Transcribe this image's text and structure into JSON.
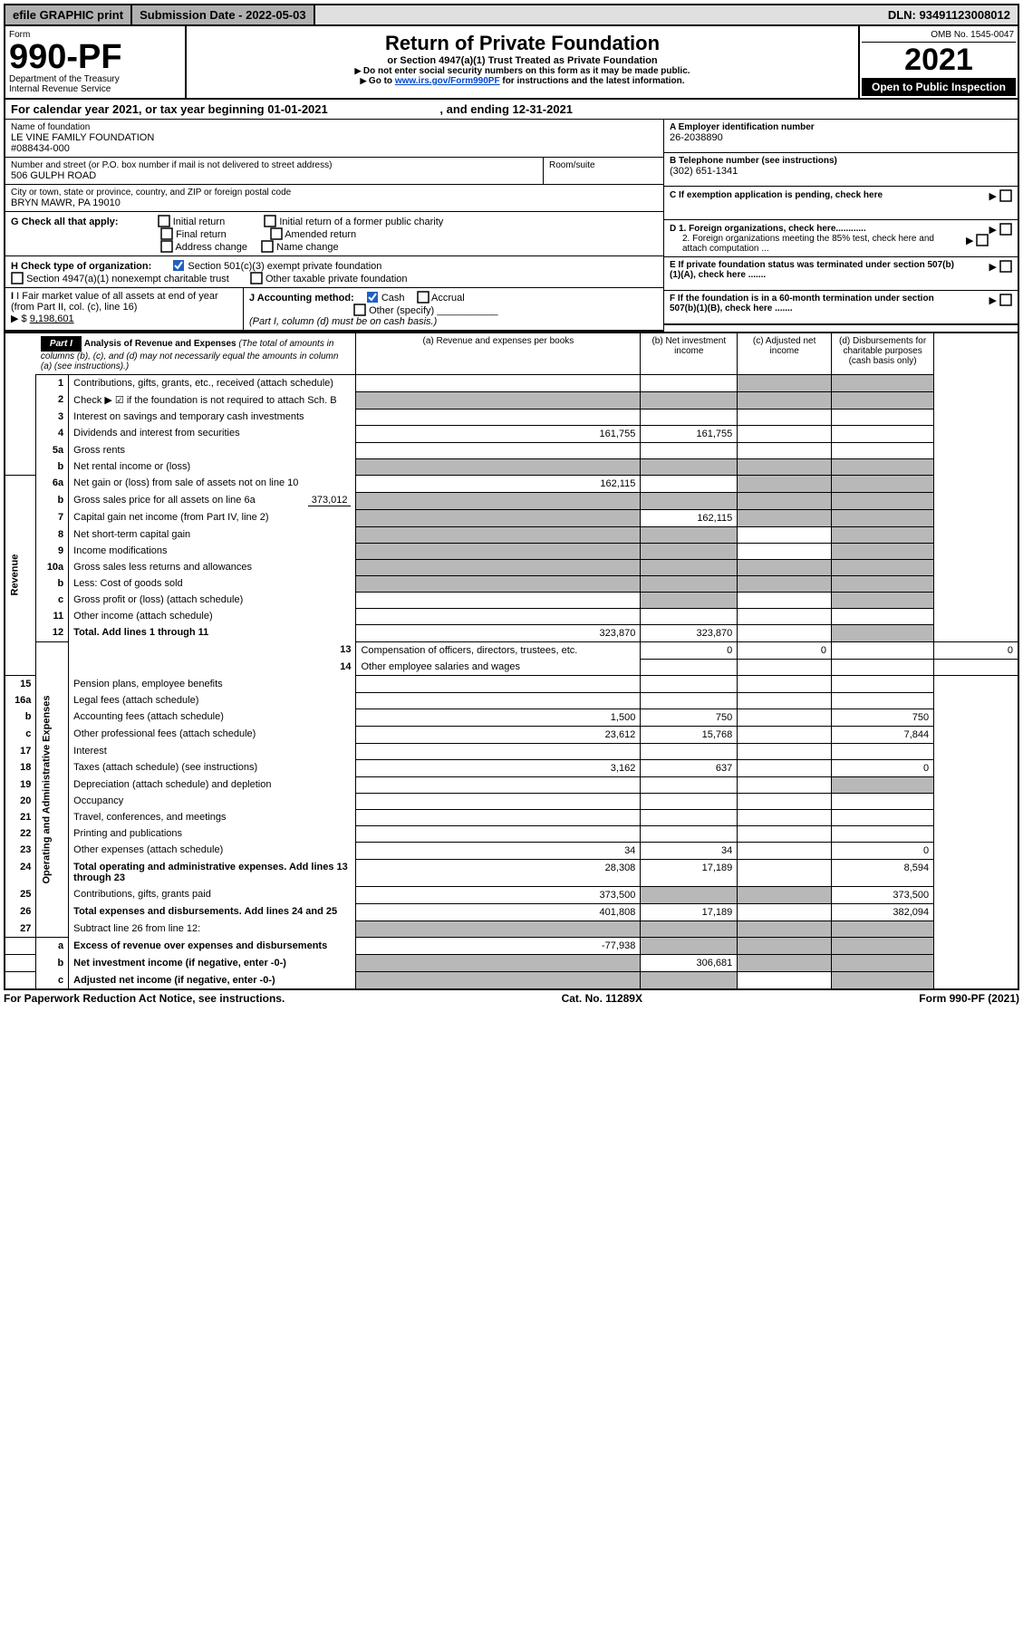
{
  "top_bar": {
    "efile": "efile GRAPHIC print",
    "submission_label": "Submission Date - 2022-05-03",
    "dln": "DLN: 93491123008012"
  },
  "header": {
    "form_label": "Form",
    "form_number": "990-PF",
    "dept": "Department of the Treasury",
    "irs": "Internal Revenue Service",
    "title": "Return of Private Foundation",
    "subtitle": "or Section 4947(a)(1) Trust Treated as Private Foundation",
    "note1": "Do not enter social security numbers on this form as it may be made public.",
    "note2_pre": "Go to ",
    "note2_link": "www.irs.gov/Form990PF",
    "note2_post": " for instructions and the latest information.",
    "omb": "OMB No. 1545-0047",
    "year": "2021",
    "inspection": "Open to Public Inspection"
  },
  "calendar": {
    "text_pre": "For calendar year 2021, or tax year beginning ",
    "begin": "01-01-2021",
    "mid": " , and ending ",
    "end": "12-31-2021"
  },
  "foundation": {
    "name_label": "Name of foundation",
    "name": "LE VINE FAMILY FOUNDATION",
    "name2": "#088434-000",
    "addr_label": "Number and street (or P.O. box number if mail is not delivered to street address)",
    "addr": "506 GULPH ROAD",
    "room_label": "Room/suite",
    "city_label": "City or town, state or province, country, and ZIP or foreign postal code",
    "city": "BRYN MAWR, PA  19010"
  },
  "right_box": {
    "A_label": "A Employer identification number",
    "A_val": "26-2038890",
    "B_label": "B Telephone number (see instructions)",
    "B_val": "(302) 651-1341",
    "C_label": "C If exemption application is pending, check here",
    "D1": "D 1. Foreign organizations, check here............",
    "D2": "2. Foreign organizations meeting the 85% test, check here and attach computation ...",
    "E": "E  If private foundation status was terminated under section 507(b)(1)(A), check here .......",
    "F": "F  If the foundation is in a 60-month termination under section 507(b)(1)(B), check here ......."
  },
  "G": {
    "label": "G Check all that apply:",
    "o1": "Initial return",
    "o2": "Final return",
    "o3": "Address change",
    "o4": "Initial return of a former public charity",
    "o5": "Amended return",
    "o6": "Name change"
  },
  "H": {
    "label": "H Check type of organization:",
    "o1": "Section 501(c)(3) exempt private foundation",
    "o2": "Section 4947(a)(1) nonexempt charitable trust",
    "o3": "Other taxable private foundation"
  },
  "I": {
    "label": "I Fair market value of all assets at end of year (from Part II, col. (c), line 16)",
    "val_label": "$",
    "val": "9,198,601"
  },
  "J": {
    "label": "J Accounting method:",
    "o1": "Cash",
    "o2": "Accrual",
    "o3": "Other (specify)",
    "note": "(Part I, column (d) must be on cash basis.)"
  },
  "part1": {
    "label": "Part I",
    "title": "Analysis of Revenue and Expenses",
    "title_note": " (The total of amounts in columns (b), (c), and (d) may not necessarily equal the amounts in column (a) (see instructions).)",
    "col_a": "(a)  Revenue and expenses per books",
    "col_b": "(b)  Net investment income",
    "col_c": "(c)  Adjusted net income",
    "col_d": "(d)  Disbursements for charitable purposes (cash basis only)"
  },
  "side": {
    "revenue": "Revenue",
    "expenses": "Operating and Administrative Expenses"
  },
  "rows": {
    "r1": {
      "n": "1",
      "d": "Contributions, gifts, grants, etc., received (attach schedule)"
    },
    "r2": {
      "n": "2",
      "d": "Check ▶ ☑ if the foundation is not required to attach Sch. B"
    },
    "r3": {
      "n": "3",
      "d": "Interest on savings and temporary cash investments"
    },
    "r4": {
      "n": "4",
      "d": "Dividends and interest from securities",
      "a": "161,755",
      "b": "161,755"
    },
    "r5a": {
      "n": "5a",
      "d": "Gross rents"
    },
    "r5b": {
      "n": "b",
      "d": "Net rental income or (loss)"
    },
    "r6a": {
      "n": "6a",
      "d": "Net gain or (loss) from sale of assets not on line 10",
      "a": "162,115"
    },
    "r6b": {
      "n": "b",
      "d": "Gross sales price for all assets on line 6a",
      "inline": "373,012"
    },
    "r7": {
      "n": "7",
      "d": "Capital gain net income (from Part IV, line 2)",
      "b": "162,115"
    },
    "r8": {
      "n": "8",
      "d": "Net short-term capital gain"
    },
    "r9": {
      "n": "9",
      "d": "Income modifications"
    },
    "r10a": {
      "n": "10a",
      "d": "Gross sales less returns and allowances"
    },
    "r10b": {
      "n": "b",
      "d": "Less: Cost of goods sold"
    },
    "r10c": {
      "n": "c",
      "d": "Gross profit or (loss) (attach schedule)"
    },
    "r11": {
      "n": "11",
      "d": "Other income (attach schedule)"
    },
    "r12": {
      "n": "12",
      "d": "Total. Add lines 1 through 11",
      "a": "323,870",
      "b": "323,870"
    },
    "r13": {
      "n": "13",
      "d": "Compensation of officers, directors, trustees, etc.",
      "a": "0",
      "b": "0",
      "dd": "0"
    },
    "r14": {
      "n": "14",
      "d": "Other employee salaries and wages"
    },
    "r15": {
      "n": "15",
      "d": "Pension plans, employee benefits"
    },
    "r16a": {
      "n": "16a",
      "d": "Legal fees (attach schedule)"
    },
    "r16b": {
      "n": "b",
      "d": "Accounting fees (attach schedule)",
      "a": "1,500",
      "b": "750",
      "dd": "750"
    },
    "r16c": {
      "n": "c",
      "d": "Other professional fees (attach schedule)",
      "a": "23,612",
      "b": "15,768",
      "dd": "7,844"
    },
    "r17": {
      "n": "17",
      "d": "Interest"
    },
    "r18": {
      "n": "18",
      "d": "Taxes (attach schedule) (see instructions)",
      "a": "3,162",
      "b": "637",
      "dd": "0"
    },
    "r19": {
      "n": "19",
      "d": "Depreciation (attach schedule) and depletion"
    },
    "r20": {
      "n": "20",
      "d": "Occupancy"
    },
    "r21": {
      "n": "21",
      "d": "Travel, conferences, and meetings"
    },
    "r22": {
      "n": "22",
      "d": "Printing and publications"
    },
    "r23": {
      "n": "23",
      "d": "Other expenses (attach schedule)",
      "a": "34",
      "b": "34",
      "dd": "0"
    },
    "r24": {
      "n": "24",
      "d": "Total operating and administrative expenses. Add lines 13 through 23",
      "a": "28,308",
      "b": "17,189",
      "dd": "8,594"
    },
    "r25": {
      "n": "25",
      "d": "Contributions, gifts, grants paid",
      "a": "373,500",
      "dd": "373,500"
    },
    "r26": {
      "n": "26",
      "d": "Total expenses and disbursements. Add lines 24 and 25",
      "a": "401,808",
      "b": "17,189",
      "dd": "382,094"
    },
    "r27": {
      "n": "27",
      "d": "Subtract line 26 from line 12:"
    },
    "r27a": {
      "n": "a",
      "d": "Excess of revenue over expenses and disbursements",
      "a": "-77,938"
    },
    "r27b": {
      "n": "b",
      "d": "Net investment income (if negative, enter -0-)",
      "b": "306,681"
    },
    "r27c": {
      "n": "c",
      "d": "Adjusted net income (if negative, enter -0-)"
    }
  },
  "footer": {
    "left": "For Paperwork Reduction Act Notice, see instructions.",
    "mid": "Cat. No. 11289X",
    "right": "Form 990-PF (2021)"
  }
}
